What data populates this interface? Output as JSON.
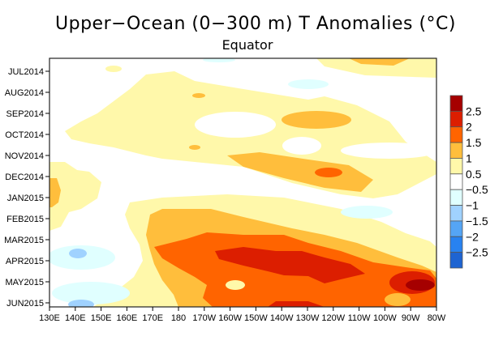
{
  "chart_data": {
    "type": "heatmap",
    "title": "Upper−Ocean (0−300 m) T Anomalies (°C)",
    "subtitle": "Equator",
    "xlabel": "",
    "ylabel": "",
    "x_ticks": [
      "130E",
      "140E",
      "150E",
      "160E",
      "170E",
      "180",
      "170W",
      "160W",
      "150W",
      "140W",
      "130W",
      "120W",
      "110W",
      "100W",
      "90W",
      "80W"
    ],
    "x_range_lon_east": [
      130,
      280
    ],
    "y_ticks": [
      "JUL2014",
      "AUG2014",
      "SEP2014",
      "OCT2014",
      "NOV2014",
      "DEC2014",
      "JAN2015",
      "FEB2015",
      "MAR2015",
      "APR2015",
      "MAY2015",
      "JUN2015"
    ],
    "y_direction": "time increases downward",
    "colorbar": {
      "labels": [
        "2.5",
        "2",
        "1.5",
        "1",
        "0.5",
        "−0.5",
        "−1",
        "−1.5",
        "−2",
        "−2.5"
      ],
      "colors": [
        "#a50000",
        "#dc1e00",
        "#ff6400",
        "#ffbe3c",
        "#fff8aa",
        "#ffffff",
        "#e0ffff",
        "#a0d2ff",
        "#55a5f5",
        "#2882f0",
        "#1e64d2"
      ]
    },
    "features": [
      {
        "level": ">2.5",
        "lon": "90W",
        "time": "MAY2015"
      },
      {
        "level": "2-2.5",
        "lon": "160W-120W",
        "time": "APR2015-MAY2015"
      },
      {
        "level": "1.5-2",
        "lon": "130W",
        "time": "DEC2014"
      },
      {
        "level": "1-1.5",
        "lon": "130E",
        "time": "JAN2015"
      },
      {
        "level": "-1 to -1.5",
        "lon": "140E",
        "time": "APR2015"
      }
    ]
  }
}
